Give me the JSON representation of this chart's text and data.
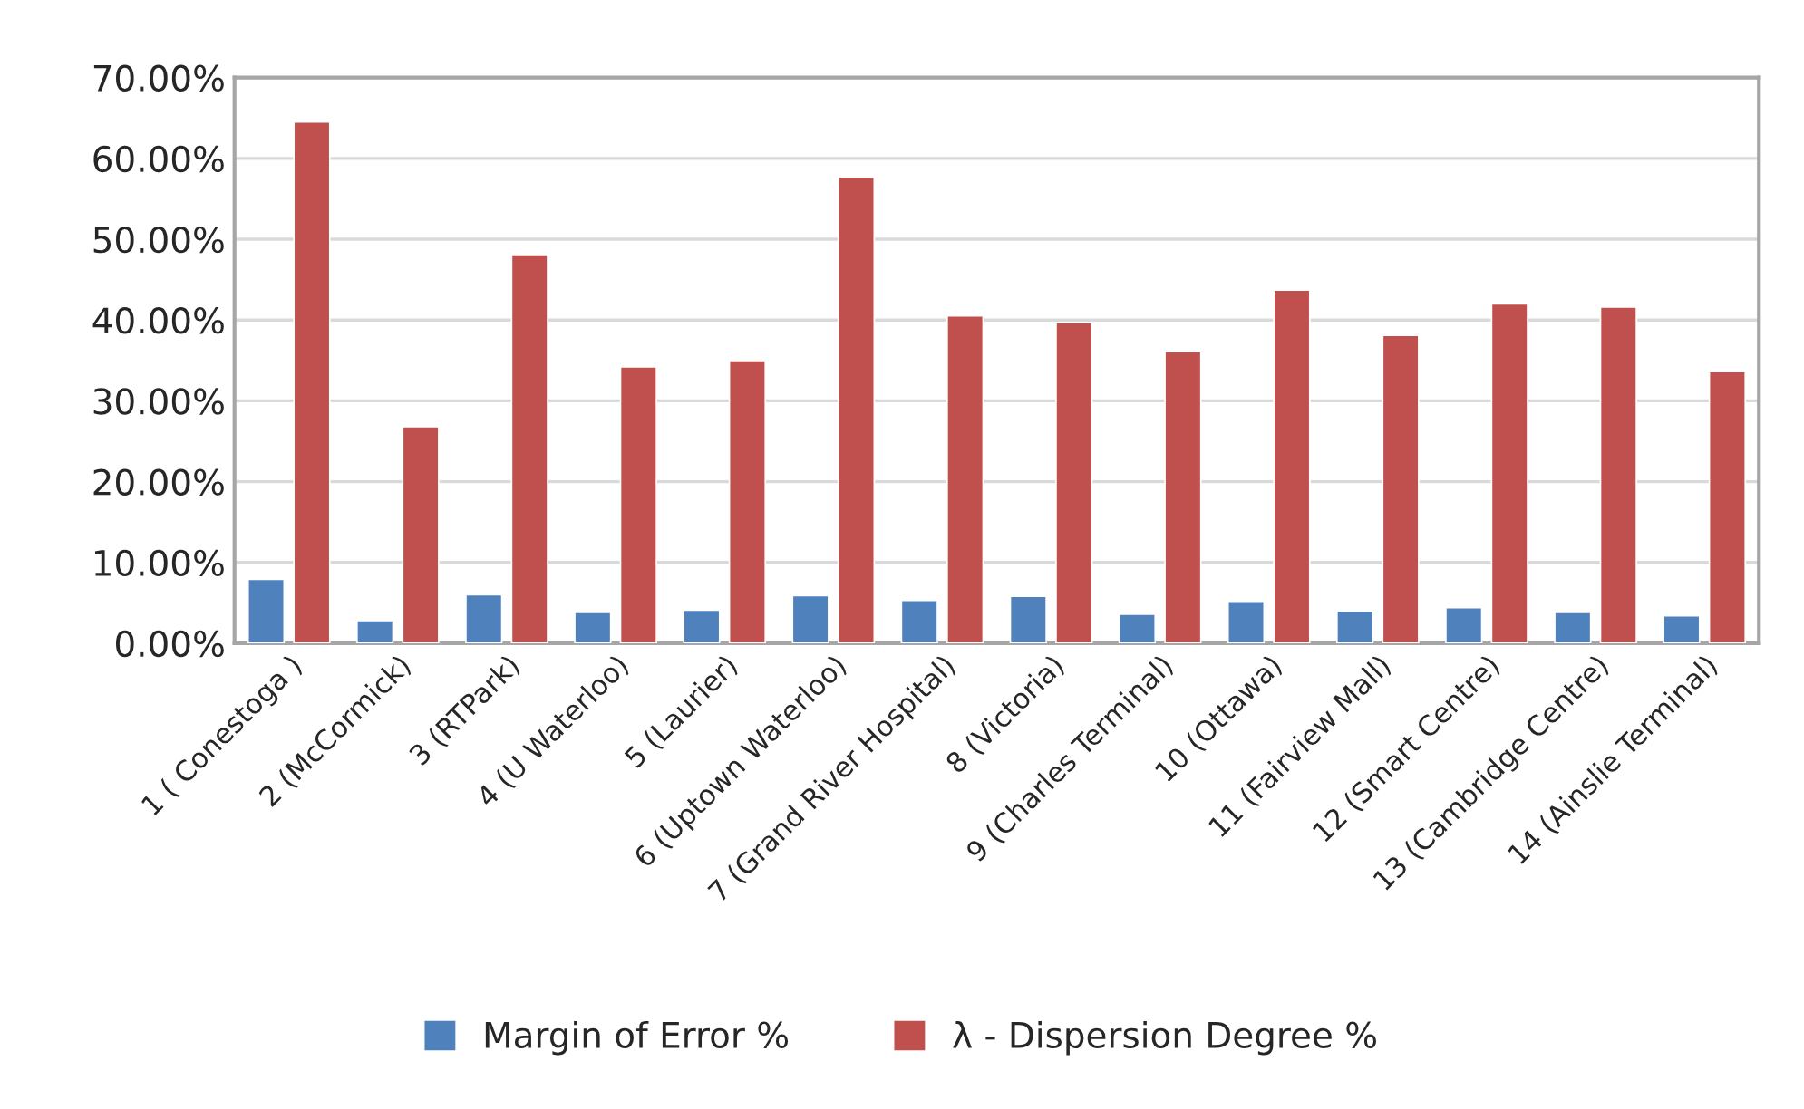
{
  "chart_data": {
    "type": "bar",
    "categories": [
      "1 ( Conestoga )",
      "2 (McCormick)",
      "3 (RTPark)",
      "4 (U Waterloo)",
      "5 (Laurier)",
      "6 (Uptown Waterloo)",
      "7 (Grand River Hospital)",
      "8 (Victoria)",
      "9 (Charles Terminal)",
      "10 (Ottawa)",
      "11 (Fairview Mall)",
      "12 (Smart Centre)",
      "13 (Cambridge Centre)",
      "14 (Ainslie Terminal)"
    ],
    "series": [
      {
        "name": "Margin of Error %",
        "color": "#4f81bd",
        "values": [
          7.9,
          2.8,
          6.0,
          3.8,
          4.1,
          5.9,
          5.3,
          5.8,
          3.6,
          5.2,
          4.0,
          4.4,
          3.8,
          3.4
        ]
      },
      {
        "name": "λ - Dispersion Degree %",
        "color": "#c0504d",
        "values": [
          64.5,
          26.8,
          48.1,
          34.2,
          35.0,
          57.7,
          40.5,
          39.7,
          36.1,
          43.7,
          38.1,
          42.0,
          41.6,
          33.6
        ]
      }
    ],
    "ylim": [
      0,
      70
    ],
    "yticks": [
      {
        "value": 0,
        "label": "0.00%"
      },
      {
        "value": 10,
        "label": "10.00%"
      },
      {
        "value": 20,
        "label": "20.00%"
      },
      {
        "value": 30,
        "label": "30.00%"
      },
      {
        "value": 40,
        "label": "40.00%"
      },
      {
        "value": 50,
        "label": "50.00%"
      },
      {
        "value": 60,
        "label": "60.00%"
      },
      {
        "value": 70,
        "label": "70.00%"
      }
    ],
    "grid": "y",
    "legend": "bottom"
  }
}
